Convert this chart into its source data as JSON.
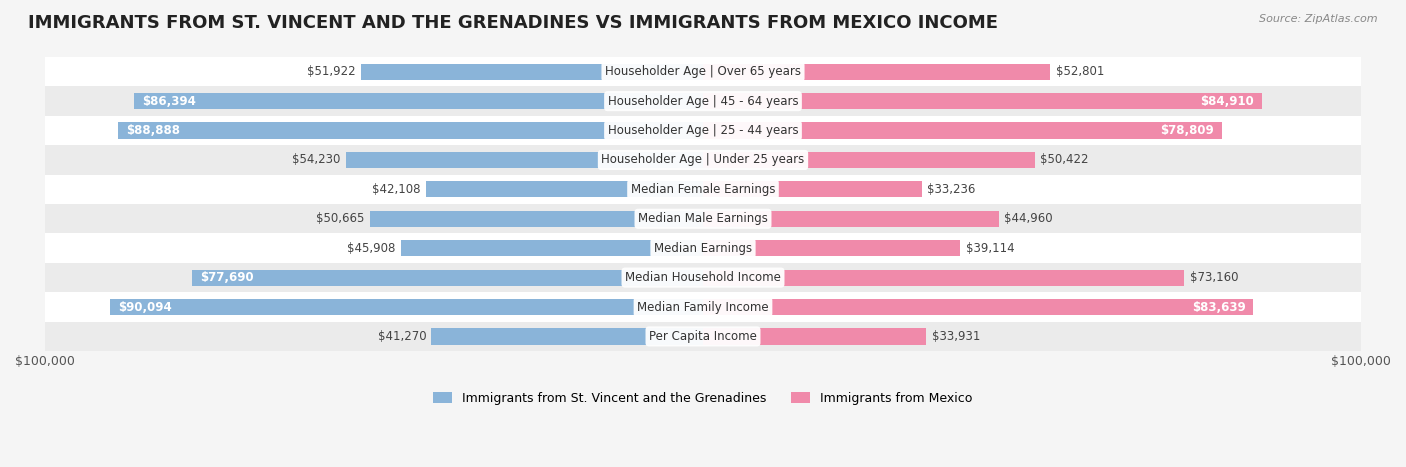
{
  "title": "IMMIGRANTS FROM ST. VINCENT AND THE GRENADINES VS IMMIGRANTS FROM MEXICO INCOME",
  "source": "Source: ZipAtlas.com",
  "categories": [
    "Per Capita Income",
    "Median Family Income",
    "Median Household Income",
    "Median Earnings",
    "Median Male Earnings",
    "Median Female Earnings",
    "Householder Age | Under 25 years",
    "Householder Age | 25 - 44 years",
    "Householder Age | 45 - 64 years",
    "Householder Age | Over 65 years"
  ],
  "left_values": [
    41270,
    90094,
    77690,
    45908,
    50665,
    42108,
    54230,
    88888,
    86394,
    51922
  ],
  "right_values": [
    33931,
    83639,
    73160,
    39114,
    44960,
    33236,
    50422,
    78809,
    84910,
    52801
  ],
  "left_labels": [
    "$41,270",
    "$90,094",
    "$77,690",
    "$45,908",
    "$50,665",
    "$42,108",
    "$54,230",
    "$88,888",
    "$86,394",
    "$51,922"
  ],
  "right_labels": [
    "$33,931",
    "$83,639",
    "$73,160",
    "$39,114",
    "$44,960",
    "$33,236",
    "$50,422",
    "$78,809",
    "$84,910",
    "$52,801"
  ],
  "left_color": "#8ab4d9",
  "right_color": "#f08aaa",
  "max_value": 100000,
  "legend_left": "Immigrants from St. Vincent and the Grenadines",
  "legend_right": "Immigrants from Mexico",
  "bg_color": "#f5f5f5",
  "row_bg_even": "#ffffff",
  "row_bg_odd": "#ebebeb",
  "label_fontsize": 8.5,
  "category_fontsize": 8.5,
  "title_fontsize": 13,
  "large_threshold": 75000
}
